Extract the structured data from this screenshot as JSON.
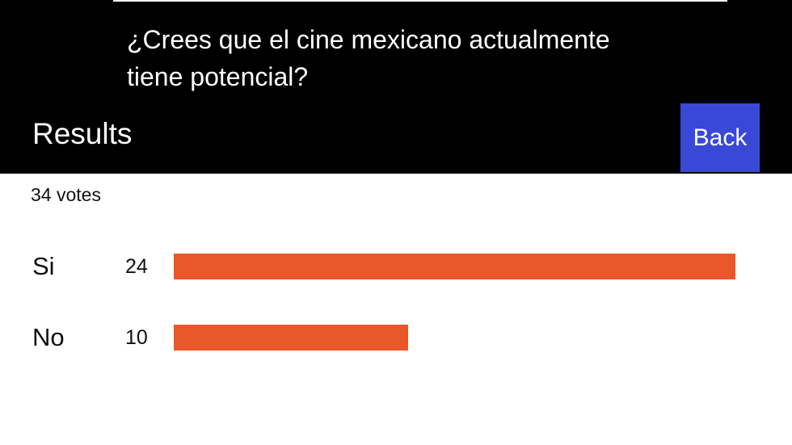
{
  "poll": {
    "question": "¿Crees que el cine mexicano actualmente tiene potencial?",
    "heading": "Results",
    "back_button": "Back",
    "total_votes": "34 votes",
    "options": [
      {
        "label": "Si",
        "votes": 24
      },
      {
        "label": "No",
        "votes": 10
      }
    ]
  }
}
